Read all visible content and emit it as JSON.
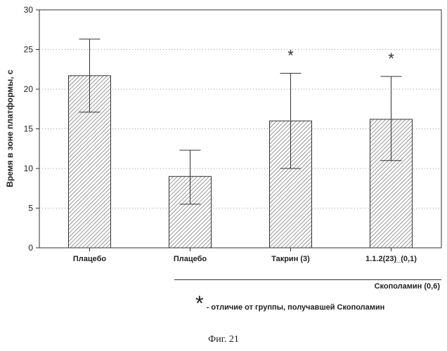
{
  "chart_data": {
    "type": "bar",
    "categories": [
      "Плацебо",
      "Плацебо",
      "Такрин (3)",
      "1.1.2(23)_(0,1)"
    ],
    "values": [
      21.7,
      9.0,
      16.0,
      16.2
    ],
    "error_upper": [
      26.3,
      12.3,
      22.0,
      21.6
    ],
    "error_lower": [
      17.1,
      5.5,
      10.0,
      11.0
    ],
    "significant": [
      false,
      false,
      true,
      true
    ],
    "ylabel": "Время в зоне платформы, с",
    "ylim": [
      0,
      30
    ],
    "yticks": [
      0,
      5,
      10,
      15,
      20,
      25,
      30
    ],
    "grid": true,
    "bar_fill": "hatched"
  },
  "group": {
    "label": "Скополамин (0,6)"
  },
  "legend": {
    "symbol": "*",
    "text": "- отличие от группы, получавшей Скополамин"
  },
  "caption": "Фиг. 21"
}
